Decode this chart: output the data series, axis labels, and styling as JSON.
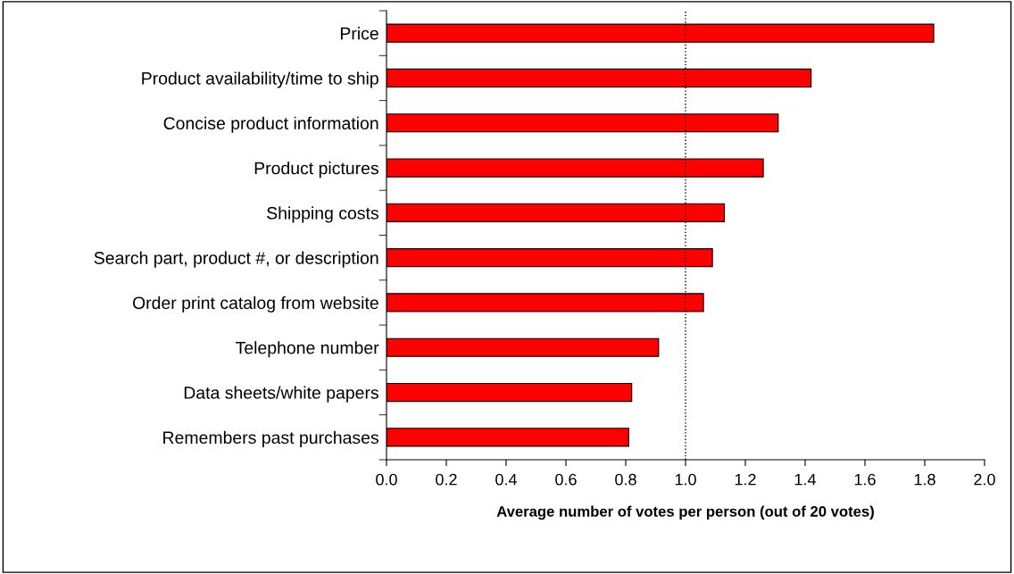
{
  "chart_data": {
    "type": "bar",
    "orientation": "horizontal",
    "xlabel": "Average number of votes per person (out of 20 votes)",
    "categories": [
      "Price",
      "Product availability/time to ship",
      "Concise product information",
      "Product pictures",
      "Shipping costs",
      "Search part, product #, or description",
      "Order print catalog from website",
      "Telephone number",
      "Data sheets/white papers",
      "Remembers past purchases"
    ],
    "values": [
      1.83,
      1.42,
      1.31,
      1.26,
      1.13,
      1.09,
      1.06,
      0.91,
      0.82,
      0.81
    ],
    "color": "#ff0000",
    "xlim": [
      0,
      2
    ],
    "xticks": [
      {
        "value": 0,
        "label": "0.0"
      },
      {
        "value": 0.2,
        "label": "0.2"
      },
      {
        "value": 0.4,
        "label": "0.4"
      },
      {
        "value": 0.6,
        "label": "0.6"
      },
      {
        "value": 0.8,
        "label": "0.8"
      },
      {
        "value": 1.0,
        "label": "1.0"
      },
      {
        "value": 1.2,
        "label": "1.2"
      },
      {
        "value": 1.4,
        "label": "1.4"
      },
      {
        "value": 1.6,
        "label": "1.6"
      },
      {
        "value": 1.8,
        "label": "1.8"
      },
      {
        "value": 2.0,
        "label": "2.0"
      }
    ],
    "ref_lines": [
      {
        "axis": "x",
        "value": 1.0,
        "color": "#000000",
        "line_style": "dotted"
      }
    ],
    "grid": false,
    "legend": false
  }
}
